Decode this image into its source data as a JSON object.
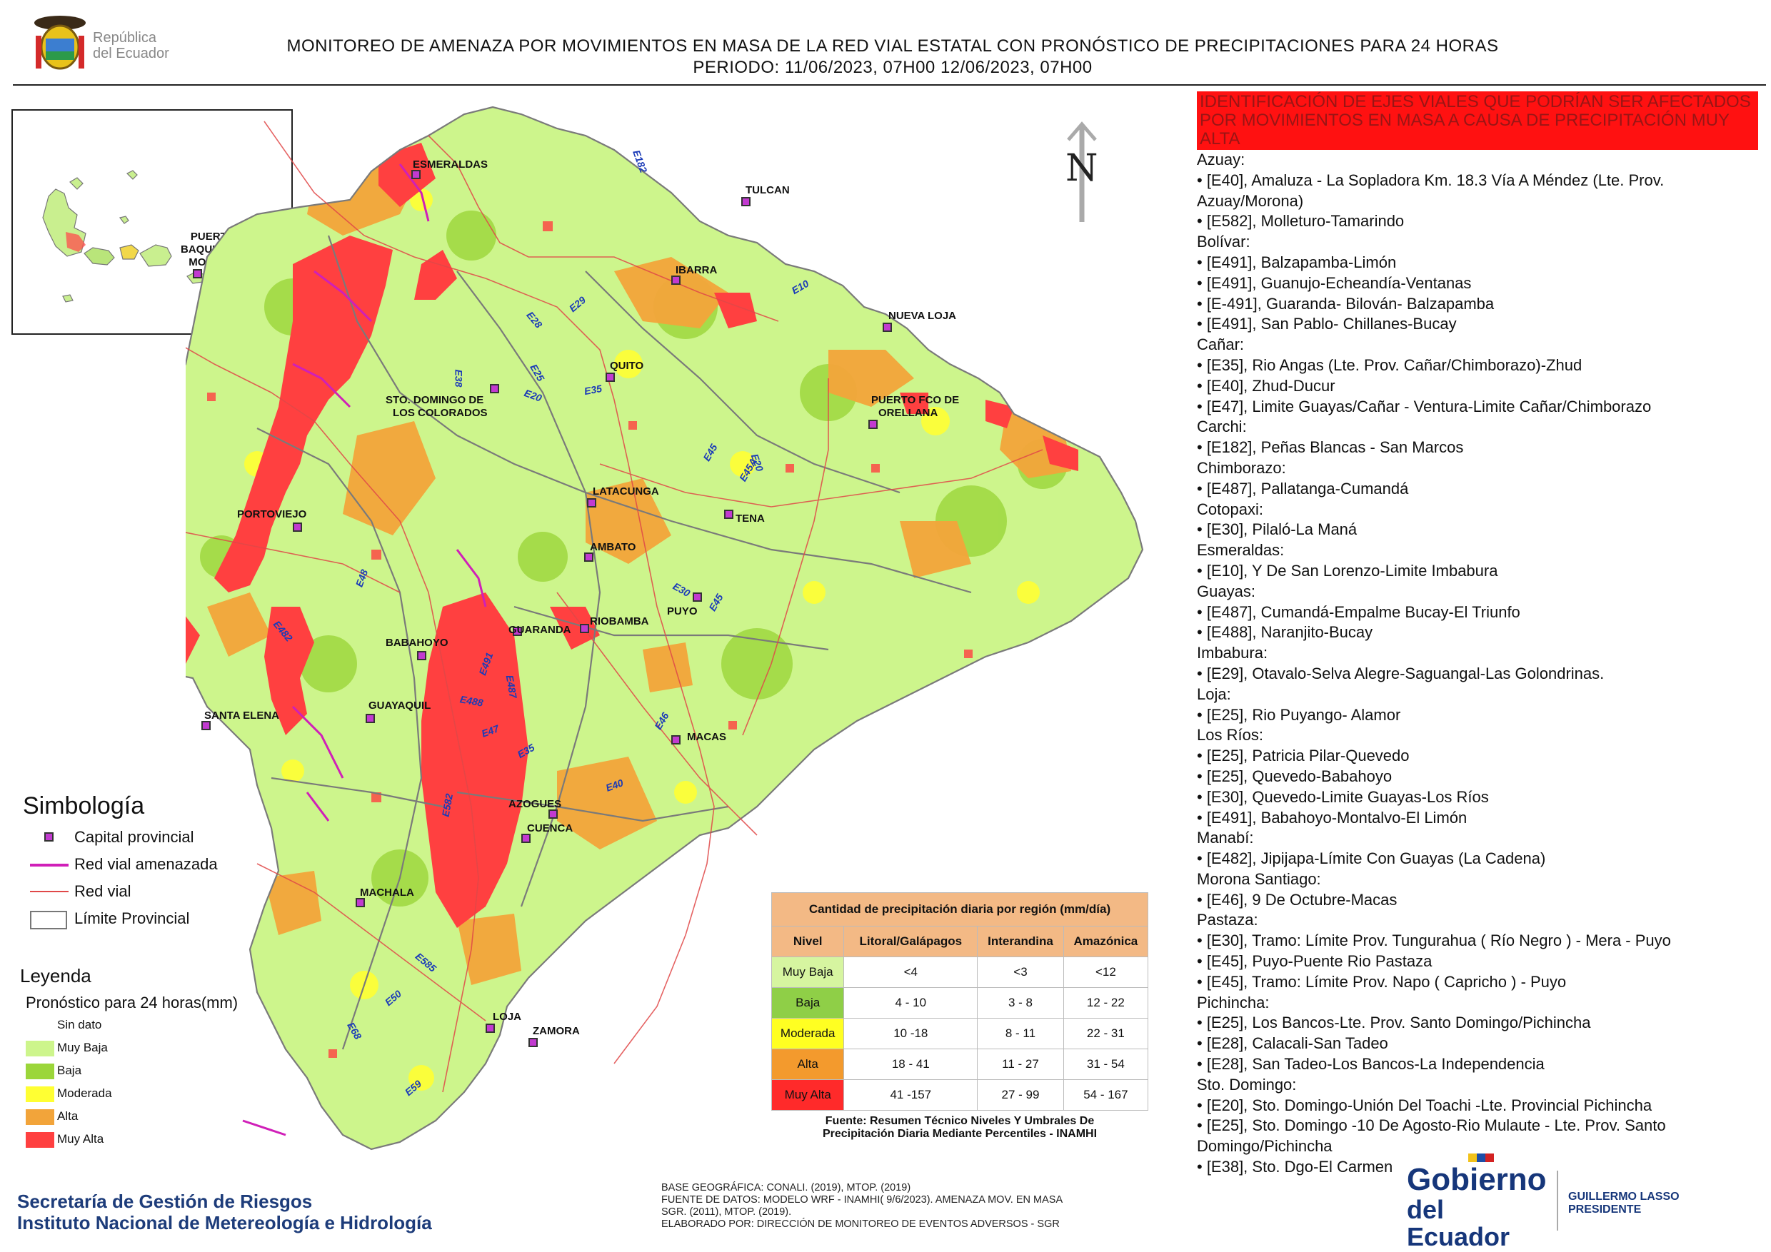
{
  "header": {
    "title_line1": "MONITOREO DE AMENAZA POR MOVIMIENTOS EN MASA DE LA RED VIAL  ESTATAL  CON PRONÓSTICO  DE  PRECIPITACIONES PARA 24 HORAS",
    "title_line2": "PERIODO: 11/06/2023, 07H00 12/06/2023, 07H00",
    "logo_line1": "República",
    "logo_line2": "del Ecuador"
  },
  "inset": {
    "city_line1": "PUERTO",
    "city_line2": "BAQUERIZO",
    "city_line3": "MORENO"
  },
  "compass": {
    "label": "N"
  },
  "cities": [
    {
      "id": "esmeraldas",
      "name": "ESMERALDAS"
    },
    {
      "id": "tulcan",
      "name": "TULCAN"
    },
    {
      "id": "ibarra",
      "name": "IBARRA"
    },
    {
      "id": "nueva-loja",
      "name": "NUEVA LOJA"
    },
    {
      "id": "quito",
      "name": "QUITO"
    },
    {
      "id": "sto-domingo",
      "name": "STO. DOMINGO DE"
    },
    {
      "id": "sto-domingo-2",
      "name": "LOS COLORADOS"
    },
    {
      "id": "puerto-fco",
      "name": "PUERTO FCO DE"
    },
    {
      "id": "puerto-fco-2",
      "name": "ORELLANA"
    },
    {
      "id": "latacunga",
      "name": "LATACUNGA"
    },
    {
      "id": "tena",
      "name": "TENA"
    },
    {
      "id": "portoviejo",
      "name": "PORTOVIEJO"
    },
    {
      "id": "ambato",
      "name": "AMBATO"
    },
    {
      "id": "puyo",
      "name": "PUYO"
    },
    {
      "id": "guaranda",
      "name": "GUARANDA"
    },
    {
      "id": "riobamba",
      "name": "RIOBAMBA"
    },
    {
      "id": "babahoyo",
      "name": "BABAHOYO"
    },
    {
      "id": "santa-elena",
      "name": "SANTA ELENA"
    },
    {
      "id": "guayaquil",
      "name": "GUAYAQUIL"
    },
    {
      "id": "macas",
      "name": "MACAS"
    },
    {
      "id": "azogues",
      "name": "AZOGUES"
    },
    {
      "id": "cuenca",
      "name": "CUENCA"
    },
    {
      "id": "machala",
      "name": "MACHALA"
    },
    {
      "id": "loja",
      "name": "LOJA"
    },
    {
      "id": "zamora",
      "name": "ZAMORA"
    }
  ],
  "road_labels": [
    "E182",
    "E10",
    "E28",
    "E29",
    "E25",
    "E38",
    "E20",
    "E35",
    "E45",
    "E20",
    "E45A",
    "E30",
    "E45",
    "E46",
    "E40",
    "E48",
    "E482",
    "E491",
    "E487",
    "E488",
    "E47",
    "E35",
    "E582",
    "E585",
    "E50",
    "E68",
    "E59"
  ],
  "simbologia": {
    "title": "Simbología",
    "items": [
      "Capital provincial",
      "Red vial amenazada",
      "Red vial",
      "Límite Provincial"
    ]
  },
  "leyenda": {
    "title": "Leyenda",
    "subtitle": "Pronóstico para 24 horas(mm)",
    "items": [
      {
        "label": "Sin dato",
        "color": "#ffffff"
      },
      {
        "label": "Muy Baja",
        "color": "#cdf58c"
      },
      {
        "label": "Baja",
        "color": "#9bd63a"
      },
      {
        "label": "Moderada",
        "color": "#ffff33"
      },
      {
        "label": "Alta",
        "color": "#f2a43a"
      },
      {
        "label": "Muy Alta",
        "color": "#ff4040"
      }
    ]
  },
  "precip_table": {
    "title": "Cantidad de precipitación diaria por región (mm/día)",
    "headers": [
      "Nivel",
      "Litoral/Galápagos",
      "Interandina",
      "Amazónica"
    ],
    "rows": [
      {
        "nivel": "Muy Baja",
        "lit": "<4",
        "int": "<3",
        "ama": "<12",
        "color": "#d6f5a0"
      },
      {
        "nivel": "Baja",
        "lit": "4 - 10",
        "int": "3 - 8",
        "ama": "12 - 22",
        "color": "#8fcf47"
      },
      {
        "nivel": "Moderada",
        "lit": "10 -18",
        "int": "8 - 11",
        "ama": "22 - 31",
        "color": "#ffff22"
      },
      {
        "nivel": "Alta",
        "lit": "18 - 41",
        "int": "11 - 27",
        "ama": "31 - 54",
        "color": "#f39a2d"
      },
      {
        "nivel": "Muy Alta",
        "lit": "41 -157",
        "int": "27 - 99",
        "ama": "54 - 167",
        "color": "#ff2a2a"
      }
    ],
    "source_line1": "Fuente: Resumen Técnico Niveles Y Umbrales De",
    "source_line2": "Precipitación Diaria Mediante Percentiles - INAMHI"
  },
  "list": {
    "header": "IDENTIFICACIÓN DE EJES VIALES QUE PODRÍAN SER AFECTADOS POR MOVIMIENTOS EN MASA A CAUSA DE PRECIPITACIÓN MUY ALTA",
    "lines": [
      "Azuay:",
      "• [E40], Amaluza - La Sopladora Km. 18.3 Vía A Méndez (Lte. Prov.",
      "Azuay/Morona)",
      "• [E582], Molleturo-Tamarindo",
      "Bolívar:",
      "• [E491], Balzapamba-Limón",
      "• [E491], Guanujo-Echeandía-Ventanas",
      "• [E-491], Guaranda- Bilován- Balzapamba",
      "• [E491], San Pablo- Chillanes-Bucay",
      "Cañar:",
      "• [E35], Rio Angas (Lte. Prov. Cañar/Chimborazo)-Zhud",
      "• [E40], Zhud-Ducur",
      "• [E47], Limite Guayas/Cañar - Ventura-Limite Cañar/Chimborazo",
      "Carchi:",
      "• [E182], Peñas Blancas - San Marcos",
      "Chimborazo:",
      "• [E487], Pallatanga-Cumandá",
      "Cotopaxi:",
      "• [E30], Pilaló-La Maná",
      "Esmeraldas:",
      "• [E10], Y De San Lorenzo-Limite Imbabura",
      "Guayas:",
      "• [E487], Cumandá-Empalme Bucay-El Triunfo",
      "• [E488], Naranjito-Bucay",
      "Imbabura:",
      "• [E29], Otavalo-Selva Alegre-Saguangal-Las Golondrinas.",
      "Loja:",
      "• [E25], Rio Puyango- Alamor",
      "Los Ríos:",
      "• [E25], Patricia Pilar-Quevedo",
      "• [E25], Quevedo-Babahoyo",
      "• [E30], Quevedo-Limite Guayas-Los Ríos",
      "• [E491], Babahoyo-Montalvo-El Limón",
      "Manabí:",
      "• [E482], Jipijapa-Límite Con Guayas (La Cadena)",
      "Morona Santiago:",
      "• [E46], 9 De Octubre-Macas",
      "Pastaza:",
      "• [E30], Tramo: Límite Prov. Tungurahua ( Río Negro ) - Mera - Puyo",
      "• [E45], Puyo-Puente Rio Pastaza",
      "• [E45], Tramo: Límite Prov. Napo ( Capricho ) - Puyo",
      "Pichincha:",
      "• [E25], Los Bancos-Lte. Prov. Santo Domingo/Pichincha",
      "• [E28], Calacali-San Tadeo",
      "• [E28], San Tadeo-Los Bancos-La Independencia",
      "Sto. Domingo:",
      "• [E20], Sto. Domingo-Unión Del Toachi -Lte. Provincial Pichincha",
      "• [E25], Sto. Domingo -10 De Agosto-Rio Mulaute - Lte. Prov. Santo",
      "Domingo/Pichincha",
      "• [E38], Sto. Dgo-El Carmen"
    ]
  },
  "footer": {
    "org_line1": "Secretaría de Gestión de Riesgos",
    "org_line2": "Instituto Nacional de Metereología e Hidrología",
    "base_line1": "BASE GEOGRÁFICA: CONALI. (2019), MTOP. (2019)",
    "base_line2": "FUENTE DE DATOS: MODELO WRF - INAMHI( 9/6/2023).  AMENAZA MOV. EN MASA",
    "base_line3": "SGR. (2011), MTOP. (2019).",
    "base_line4": "ELABORADO POR: DIRECCIÓN DE MONITOREO DE EVENTOS ADVERSOS - SGR",
    "gobierno_line1": "Gobierno",
    "gobierno_line2": "del Ecuador",
    "pres_line1": "GUILLERMO LASSO",
    "pres_line2": "PRESIDENTE"
  }
}
